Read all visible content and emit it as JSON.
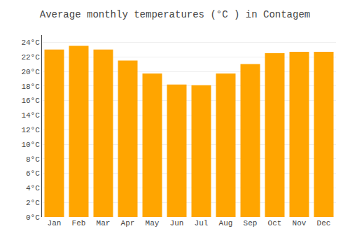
{
  "chart_data": {
    "type": "bar",
    "title": "Average monthly temperatures (°C ) in Contagem",
    "categories": [
      "Jan",
      "Feb",
      "Mar",
      "Apr",
      "May",
      "Jun",
      "Jul",
      "Aug",
      "Sep",
      "Oct",
      "Nov",
      "Dec"
    ],
    "values": [
      23.0,
      23.5,
      23.0,
      21.5,
      19.7,
      18.2,
      18.1,
      19.7,
      21.0,
      22.5,
      22.7,
      22.7
    ],
    "color": "#FFA500",
    "ylim": [
      0,
      25
    ],
    "yticks": [
      {
        "value": 0,
        "label": "0°C"
      },
      {
        "value": 2,
        "label": "2°C"
      },
      {
        "value": 4,
        "label": "4°C"
      },
      {
        "value": 6,
        "label": "6°C"
      },
      {
        "value": 8,
        "label": "8°C"
      },
      {
        "value": 10,
        "label": "10°C"
      },
      {
        "value": 12,
        "label": "12°C"
      },
      {
        "value": 14,
        "label": "14°C"
      },
      {
        "value": 16,
        "label": "16°C"
      },
      {
        "value": 18,
        "label": "18°C"
      },
      {
        "value": 20,
        "label": "20°C"
      },
      {
        "value": 22,
        "label": "22°C"
      },
      {
        "value": 24,
        "label": "24°C"
      }
    ],
    "grid": true
  }
}
